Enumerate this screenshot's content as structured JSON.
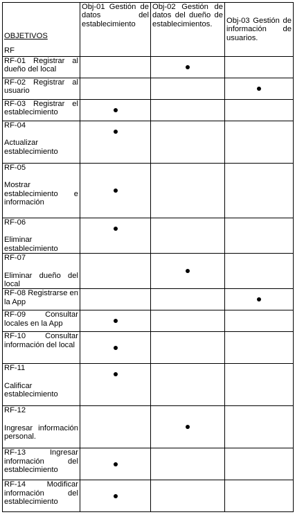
{
  "header": {
    "objetivos": "OBJETIVOS",
    "rf": "RF",
    "objectives": [
      "Obj-01 Gestión de datos del establecimiento",
      "Obj-02 Gestión de datos del dueño de establecimientos.",
      "Obj-03 Gestión de información de usuarios."
    ]
  },
  "requirements": [
    {
      "code": "RF-01",
      "name": "Registrar al dueño del local",
      "obj": [
        false,
        true,
        false
      ]
    },
    {
      "code": "RF-02",
      "name": "Registrar al usuario",
      "obj": [
        false,
        false,
        true
      ]
    },
    {
      "code": "RF-03",
      "name": "Registrar el establecimiento",
      "obj": [
        true,
        false,
        false
      ]
    },
    {
      "code": "RF-04",
      "name": "Actualizar establecimiento",
      "obj": [
        true,
        false,
        false
      ]
    },
    {
      "code": "RF-05",
      "name": "Mostrar establecimiento e información",
      "obj": [
        true,
        false,
        false
      ]
    },
    {
      "code": "RF-06",
      "name": "Eliminar establecimiento",
      "obj": [
        true,
        false,
        false
      ]
    },
    {
      "code": "RF-07",
      "name": "Eliminar dueño del local",
      "obj": [
        false,
        true,
        false
      ]
    },
    {
      "code": "RF-08",
      "name": "Registrarse en la App",
      "obj": [
        false,
        false,
        true
      ]
    },
    {
      "code": "RF-09",
      "name": "Consultar locales en la App",
      "obj": [
        true,
        false,
        false
      ]
    },
    {
      "code": "RF-10",
      "name": "Consultar información del local",
      "obj": [
        true,
        false,
        false
      ]
    },
    {
      "code": "RF-11",
      "name": "Calificar establecimiento",
      "obj": [
        true,
        false,
        false
      ]
    },
    {
      "code": "RF-12",
      "name": "Ingresar información personal.",
      "obj": [
        false,
        true,
        false
      ]
    },
    {
      "code": "RF-13",
      "name": "Ingresar información del establecimiento",
      "obj": [
        true,
        false,
        false
      ]
    },
    {
      "code": "RF-14",
      "name": "Modificar información del establecimiento",
      "obj": [
        true,
        false,
        false
      ]
    }
  ]
}
